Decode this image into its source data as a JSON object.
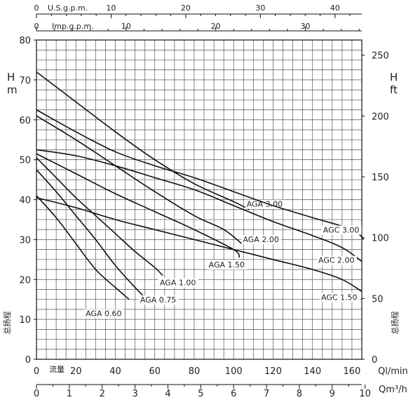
{
  "chart_data": {
    "type": "line",
    "x_unit": "Ql/min",
    "x_range": [
      0,
      165
    ],
    "x_ticks": [
      0,
      20,
      40,
      60,
      80,
      100,
      120,
      140,
      160
    ],
    "y_range": [
      0,
      80
    ],
    "y_ticks": [
      0,
      10,
      20,
      30,
      40,
      50,
      60,
      70,
      80
    ],
    "y_left_label": "H\nm",
    "y_right_label": "H\nft",
    "y_right_ticks": [
      0,
      50,
      100,
      150,
      200,
      250
    ],
    "y_left_side_caption": "总扬程",
    "y_right_side_caption": "总扬程",
    "x_inner_caption": "流量",
    "top_axis_usgpm": {
      "label": "U.S.g.p.m.",
      "ticks": [
        0,
        10,
        20,
        30,
        40
      ]
    },
    "top_axis_impgpm": {
      "label": "Imp.g.p.m.",
      "ticks": [
        0,
        10,
        20,
        30
      ]
    },
    "bottom_axis_m3h": {
      "label": "Qm³/h",
      "ticks": [
        0,
        1,
        2,
        3,
        4,
        5,
        6,
        7,
        8,
        9,
        10
      ]
    },
    "grid": true,
    "series": [
      {
        "name": "AGA 0.60",
        "x": [
          0,
          10,
          20,
          30,
          40,
          47
        ],
        "y": [
          41,
          35.5,
          29,
          22.5,
          18,
          15
        ]
      },
      {
        "name": "AGA 0.75",
        "x": [
          0,
          10,
          20,
          30,
          40,
          50,
          54
        ],
        "y": [
          47.5,
          42,
          36,
          30,
          23.5,
          18,
          16
        ]
      },
      {
        "name": "AGA 1.00",
        "x": [
          0,
          10,
          20,
          30,
          40,
          50,
          60,
          64
        ],
        "y": [
          50.5,
          45.5,
          40.5,
          36,
          31.5,
          27,
          23,
          21
        ]
      },
      {
        "name": "AGA 1.50",
        "x": [
          0,
          20,
          40,
          60,
          80,
          100,
          103
        ],
        "y": [
          51.5,
          46.5,
          41.5,
          37,
          32.5,
          27.5,
          25.5
        ]
      },
      {
        "name": "AGA 2.00",
        "x": [
          0,
          20,
          40,
          60,
          80,
          95,
          104
        ],
        "y": [
          61,
          55,
          48.5,
          42,
          36,
          32.5,
          29
        ]
      },
      {
        "name": "AGA 3.00",
        "x": [
          0,
          20,
          40,
          60,
          80,
          100,
          108
        ],
        "y": [
          72,
          64.5,
          57,
          50,
          44,
          39.5,
          37.5
        ]
      },
      {
        "name": "AGC 1.50",
        "x": [
          0,
          20,
          40,
          60,
          80,
          100,
          120,
          140,
          155,
          165
        ],
        "y": [
          40.5,
          38,
          35,
          32.5,
          30,
          27.5,
          25,
          22.5,
          20,
          17
        ]
      },
      {
        "name": "AGC 2.00",
        "x": [
          0,
          20,
          40,
          60,
          80,
          100,
          120,
          140,
          155,
          165
        ],
        "y": [
          52.5,
          51,
          48.5,
          45.5,
          42.5,
          38.5,
          34.5,
          31,
          28,
          24.5
        ]
      },
      {
        "name": "AGC 3.00",
        "x": [
          0,
          20,
          40,
          60,
          80,
          100,
          120,
          140,
          160,
          166
        ],
        "y": [
          62.5,
          57,
          52,
          48.5,
          45.5,
          42,
          38.5,
          35.5,
          32.5,
          30
        ]
      }
    ]
  }
}
